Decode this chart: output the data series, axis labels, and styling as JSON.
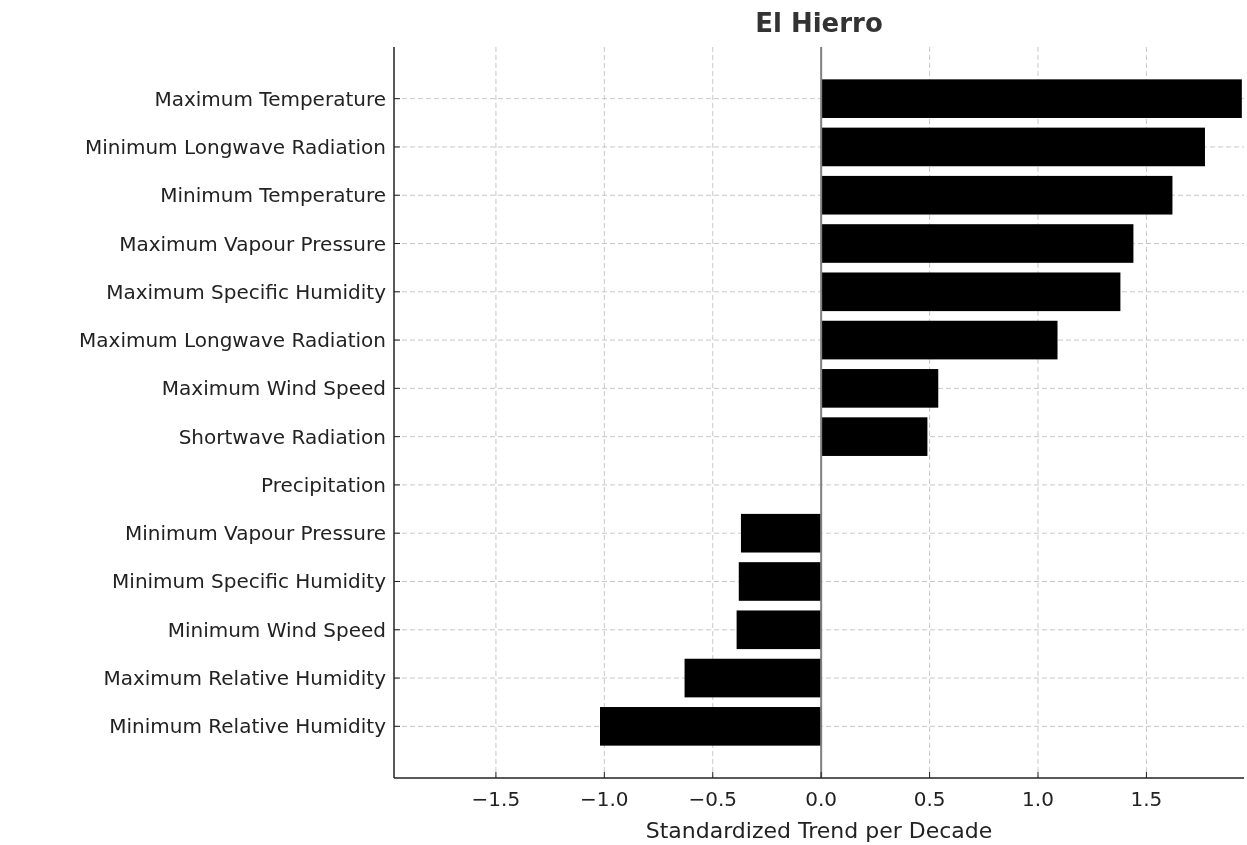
{
  "chart_data": {
    "type": "bar",
    "orientation": "horizontal",
    "title": "El Hierro",
    "xlabel": "Standardized Trend per Decade",
    "categories": [
      "Maximum Temperature",
      "Minimum Longwave Radiation",
      "Minimum Temperature",
      "Maximum Vapour Pressure",
      "Maximum Specific Humidity",
      "Maximum Longwave Radiation",
      "Maximum Wind Speed",
      "Shortwave Radiation",
      "Precipitation",
      "Minimum Vapour Pressure",
      "Minimum Specific Humidity",
      "Minimum Wind Speed",
      "Maximum Relative Humidity",
      "Minimum Relative Humidity"
    ],
    "values": [
      1.94,
      1.77,
      1.62,
      1.44,
      1.38,
      1.09,
      0.54,
      0.49,
      0,
      -0.37,
      -0.38,
      -0.39,
      -0.63,
      -1.02
    ],
    "color": "#000000",
    "xlim": [
      -1.97,
      1.95
    ],
    "xticks": [
      {
        "value": -1.5,
        "label": "−1.5"
      },
      {
        "value": -1.0,
        "label": "−1.0"
      },
      {
        "value": -0.5,
        "label": "−0.5"
      },
      {
        "value": 0,
        "label": "0.0"
      },
      {
        "value": 0.5,
        "label": "0.5"
      },
      {
        "value": 1.0,
        "label": "1.0"
      },
      {
        "value": 1.5,
        "label": "1.5"
      }
    ],
    "ref_lines": [
      {
        "axis": "x",
        "value": 0,
        "color": "#808080"
      }
    ],
    "grid": true
  }
}
